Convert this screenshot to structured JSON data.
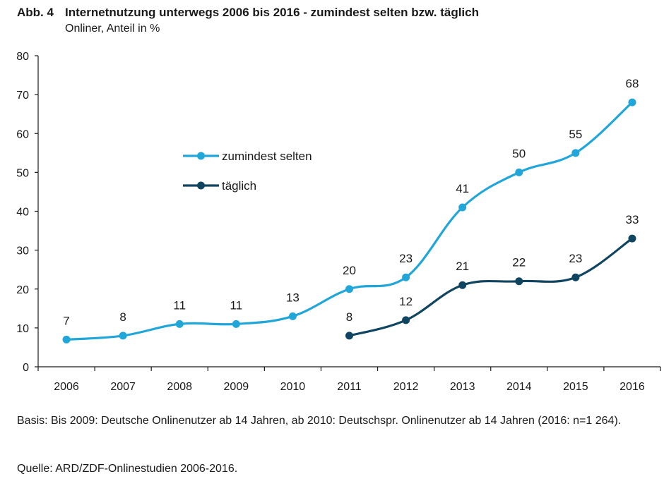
{
  "header": {
    "figure_number": "Abb. 4",
    "title": "Internetnutzung unterwegs 2006 bis 2016 - zumindest selten bzw. täglich",
    "subtitle": "Onliner, Anteil in %"
  },
  "chart_data": {
    "type": "line",
    "title": "Internetnutzung unterwegs 2006 bis 2016 - zumindest selten bzw. täglich",
    "subtitle": "Onliner, Anteil in %",
    "xlabel": "",
    "ylabel": "",
    "categories": [
      "2006",
      "2007",
      "2008",
      "2009",
      "2010",
      "2011",
      "2012",
      "2013",
      "2014",
      "2015",
      "2016"
    ],
    "ylim": [
      0,
      80
    ],
    "yticks": [
      "0",
      "10",
      "20",
      "30",
      "40",
      "50",
      "60",
      "70",
      "80"
    ],
    "grid": false,
    "legend_position": "center-left",
    "series": [
      {
        "name": "zumindest selten",
        "color": "#21a6d9",
        "values": [
          7,
          8,
          11,
          11,
          13,
          20,
          23,
          41,
          50,
          55,
          68
        ],
        "labels": [
          "7",
          "8",
          "11",
          "11",
          "13",
          "20",
          "23",
          "41",
          "50",
          "55",
          "68"
        ]
      },
      {
        "name": "täglich",
        "color": "#0f4560",
        "values": [
          null,
          null,
          null,
          null,
          null,
          8,
          12,
          21,
          22,
          23,
          33
        ],
        "labels": [
          null,
          null,
          null,
          null,
          null,
          "8",
          "12",
          "21",
          "22",
          "23",
          "33"
        ]
      }
    ]
  },
  "footer": {
    "basis": "Basis: Bis 2009: Deutsche Onlinenutzer ab 14 Jahren, ab 2010: Deutschspr. Onlinenutzer ab 14 Jahren (2016: n=1 264).",
    "source": "Quelle: ARD/ZDF-Onlinestudien 2006-2016."
  }
}
